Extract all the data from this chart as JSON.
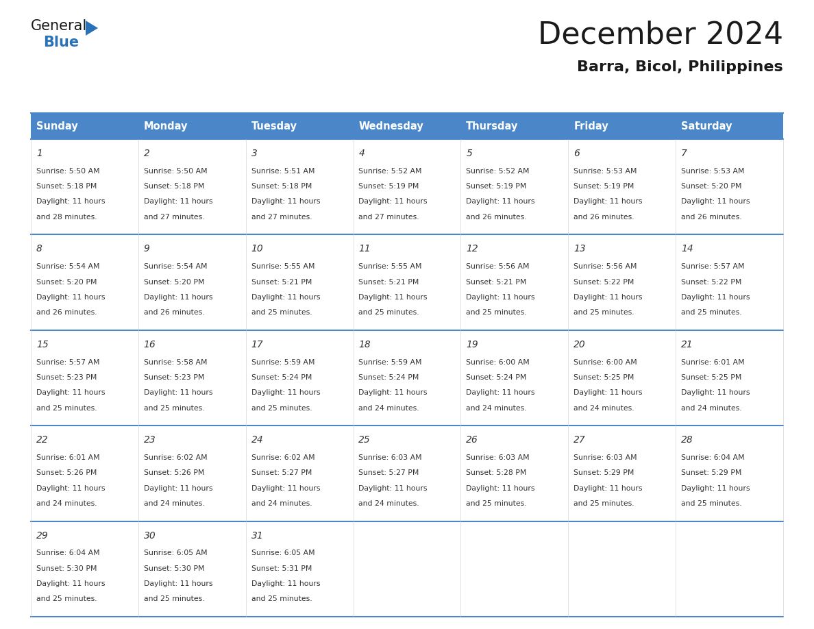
{
  "title": "December 2024",
  "subtitle": "Barra, Bicol, Philippines",
  "header_color": "#4a86c8",
  "header_text_color": "#ffffff",
  "day_names": [
    "Sunday",
    "Monday",
    "Tuesday",
    "Wednesday",
    "Thursday",
    "Friday",
    "Saturday"
  ],
  "background_color": "#ffffff",
  "cell_bg_color": "#ffffff",
  "border_color": "#4a86c8",
  "day_number_color": "#333333",
  "text_color": "#333333",
  "days": [
    {
      "day": 1,
      "col": 0,
      "row": 0,
      "sunrise": "5:50 AM",
      "sunset": "5:18 PM",
      "daylight_hours": 11,
      "daylight_minutes": 28
    },
    {
      "day": 2,
      "col": 1,
      "row": 0,
      "sunrise": "5:50 AM",
      "sunset": "5:18 PM",
      "daylight_hours": 11,
      "daylight_minutes": 27
    },
    {
      "day": 3,
      "col": 2,
      "row": 0,
      "sunrise": "5:51 AM",
      "sunset": "5:18 PM",
      "daylight_hours": 11,
      "daylight_minutes": 27
    },
    {
      "day": 4,
      "col": 3,
      "row": 0,
      "sunrise": "5:52 AM",
      "sunset": "5:19 PM",
      "daylight_hours": 11,
      "daylight_minutes": 27
    },
    {
      "day": 5,
      "col": 4,
      "row": 0,
      "sunrise": "5:52 AM",
      "sunset": "5:19 PM",
      "daylight_hours": 11,
      "daylight_minutes": 26
    },
    {
      "day": 6,
      "col": 5,
      "row": 0,
      "sunrise": "5:53 AM",
      "sunset": "5:19 PM",
      "daylight_hours": 11,
      "daylight_minutes": 26
    },
    {
      "day": 7,
      "col": 6,
      "row": 0,
      "sunrise": "5:53 AM",
      "sunset": "5:20 PM",
      "daylight_hours": 11,
      "daylight_minutes": 26
    },
    {
      "day": 8,
      "col": 0,
      "row": 1,
      "sunrise": "5:54 AM",
      "sunset": "5:20 PM",
      "daylight_hours": 11,
      "daylight_minutes": 26
    },
    {
      "day": 9,
      "col": 1,
      "row": 1,
      "sunrise": "5:54 AM",
      "sunset": "5:20 PM",
      "daylight_hours": 11,
      "daylight_minutes": 26
    },
    {
      "day": 10,
      "col": 2,
      "row": 1,
      "sunrise": "5:55 AM",
      "sunset": "5:21 PM",
      "daylight_hours": 11,
      "daylight_minutes": 25
    },
    {
      "day": 11,
      "col": 3,
      "row": 1,
      "sunrise": "5:55 AM",
      "sunset": "5:21 PM",
      "daylight_hours": 11,
      "daylight_minutes": 25
    },
    {
      "day": 12,
      "col": 4,
      "row": 1,
      "sunrise": "5:56 AM",
      "sunset": "5:21 PM",
      "daylight_hours": 11,
      "daylight_minutes": 25
    },
    {
      "day": 13,
      "col": 5,
      "row": 1,
      "sunrise": "5:56 AM",
      "sunset": "5:22 PM",
      "daylight_hours": 11,
      "daylight_minutes": 25
    },
    {
      "day": 14,
      "col": 6,
      "row": 1,
      "sunrise": "5:57 AM",
      "sunset": "5:22 PM",
      "daylight_hours": 11,
      "daylight_minutes": 25
    },
    {
      "day": 15,
      "col": 0,
      "row": 2,
      "sunrise": "5:57 AM",
      "sunset": "5:23 PM",
      "daylight_hours": 11,
      "daylight_minutes": 25
    },
    {
      "day": 16,
      "col": 1,
      "row": 2,
      "sunrise": "5:58 AM",
      "sunset": "5:23 PM",
      "daylight_hours": 11,
      "daylight_minutes": 25
    },
    {
      "day": 17,
      "col": 2,
      "row": 2,
      "sunrise": "5:59 AM",
      "sunset": "5:24 PM",
      "daylight_hours": 11,
      "daylight_minutes": 25
    },
    {
      "day": 18,
      "col": 3,
      "row": 2,
      "sunrise": "5:59 AM",
      "sunset": "5:24 PM",
      "daylight_hours": 11,
      "daylight_minutes": 24
    },
    {
      "day": 19,
      "col": 4,
      "row": 2,
      "sunrise": "6:00 AM",
      "sunset": "5:24 PM",
      "daylight_hours": 11,
      "daylight_minutes": 24
    },
    {
      "day": 20,
      "col": 5,
      "row": 2,
      "sunrise": "6:00 AM",
      "sunset": "5:25 PM",
      "daylight_hours": 11,
      "daylight_minutes": 24
    },
    {
      "day": 21,
      "col": 6,
      "row": 2,
      "sunrise": "6:01 AM",
      "sunset": "5:25 PM",
      "daylight_hours": 11,
      "daylight_minutes": 24
    },
    {
      "day": 22,
      "col": 0,
      "row": 3,
      "sunrise": "6:01 AM",
      "sunset": "5:26 PM",
      "daylight_hours": 11,
      "daylight_minutes": 24
    },
    {
      "day": 23,
      "col": 1,
      "row": 3,
      "sunrise": "6:02 AM",
      "sunset": "5:26 PM",
      "daylight_hours": 11,
      "daylight_minutes": 24
    },
    {
      "day": 24,
      "col": 2,
      "row": 3,
      "sunrise": "6:02 AM",
      "sunset": "5:27 PM",
      "daylight_hours": 11,
      "daylight_minutes": 24
    },
    {
      "day": 25,
      "col": 3,
      "row": 3,
      "sunrise": "6:03 AM",
      "sunset": "5:27 PM",
      "daylight_hours": 11,
      "daylight_minutes": 24
    },
    {
      "day": 26,
      "col": 4,
      "row": 3,
      "sunrise": "6:03 AM",
      "sunset": "5:28 PM",
      "daylight_hours": 11,
      "daylight_minutes": 25
    },
    {
      "day": 27,
      "col": 5,
      "row": 3,
      "sunrise": "6:03 AM",
      "sunset": "5:29 PM",
      "daylight_hours": 11,
      "daylight_minutes": 25
    },
    {
      "day": 28,
      "col": 6,
      "row": 3,
      "sunrise": "6:04 AM",
      "sunset": "5:29 PM",
      "daylight_hours": 11,
      "daylight_minutes": 25
    },
    {
      "day": 29,
      "col": 0,
      "row": 4,
      "sunrise": "6:04 AM",
      "sunset": "5:30 PM",
      "daylight_hours": 11,
      "daylight_minutes": 25
    },
    {
      "day": 30,
      "col": 1,
      "row": 4,
      "sunrise": "6:05 AM",
      "sunset": "5:30 PM",
      "daylight_hours": 11,
      "daylight_minutes": 25
    },
    {
      "day": 31,
      "col": 2,
      "row": 4,
      "sunrise": "6:05 AM",
      "sunset": "5:31 PM",
      "daylight_hours": 11,
      "daylight_minutes": 25
    }
  ],
  "logo_general_color": "#1a1a1a",
  "logo_blue_color": "#2a72b8",
  "logo_triangle_color": "#2a72b8",
  "title_color": "#1a1a1a",
  "subtitle_color": "#1a1a1a"
}
